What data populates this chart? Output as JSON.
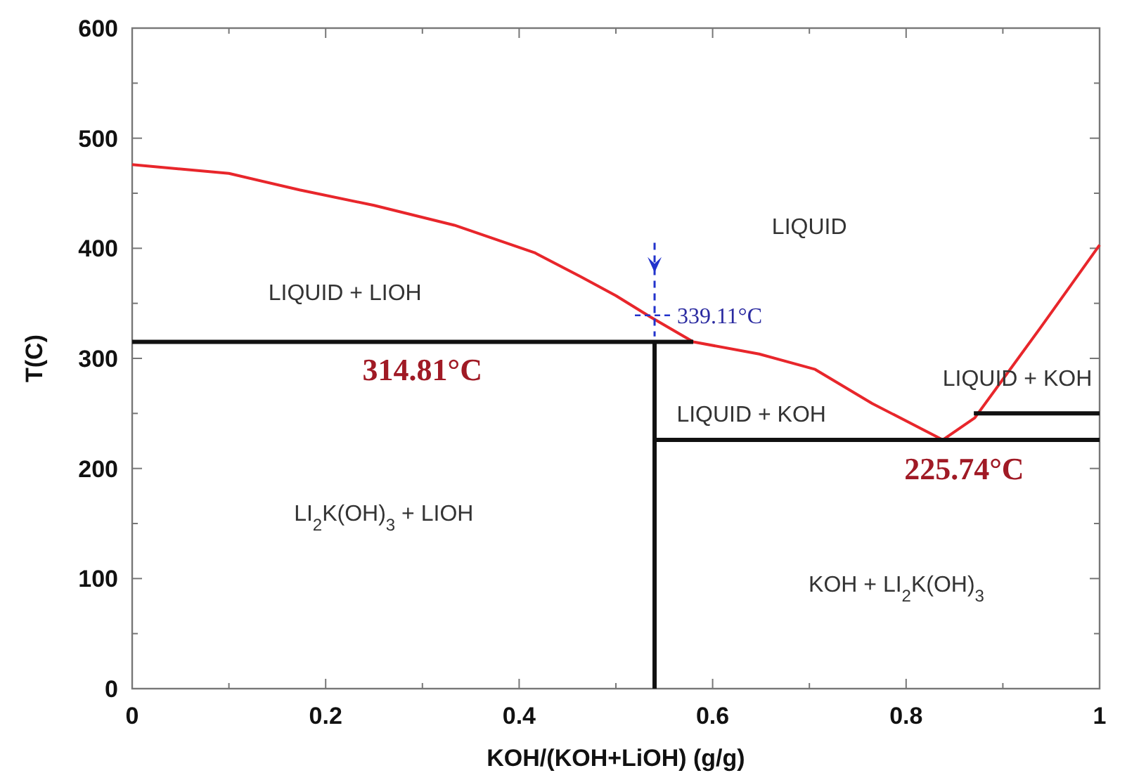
{
  "chart_data": {
    "type": "line",
    "xlabel": "KOH/(KOH+LiOH) (g/g)",
    "ylabel": "T(C)",
    "xlim": [
      0,
      1
    ],
    "ylim": [
      0,
      600
    ],
    "xticks": [
      0,
      {
        "value": 0.1,
        "label": null
      },
      0.2,
      {
        "value": 0.3,
        "label": null
      },
      0.4,
      {
        "value": 0.5,
        "label": null
      },
      0.6,
      {
        "value": 0.7,
        "label": null
      },
      0.8,
      {
        "value": 0.9,
        "label": null
      },
      1
    ],
    "yticks": [
      0,
      {
        "value": 50,
        "label": null
      },
      100,
      {
        "value": 150,
        "label": null
      },
      200,
      {
        "value": 250,
        "label": null
      },
      300,
      {
        "value": 350,
        "label": null
      },
      400,
      {
        "value": 450,
        "label": null
      },
      500,
      {
        "value": 550,
        "label": null
      },
      600
    ],
    "grid": false,
    "marker": "none",
    "line_style": "solid",
    "series": [
      {
        "color": "#e8262b",
        "x": [
          0,
          0.1,
          0.173,
          0.25,
          0.333,
          0.416,
          0.464,
          0.5,
          0.535,
          0.58,
          0.648,
          0.706,
          0.765,
          0.838,
          0.871,
          0.939,
          1
        ],
        "values": [
          476,
          468,
          453,
          439,
          421,
          396,
          374,
          357,
          338,
          315,
          304,
          290,
          259,
          226,
          246,
          328,
          403
        ]
      },
      {
        "color": "#111111",
        "x": [
          0,
          0.58
        ],
        "values": [
          315,
          315
        ]
      },
      {
        "color": "#111111",
        "x": [
          0.54,
          0.54
        ],
        "values": [
          0,
          315
        ]
      },
      {
        "color": "#111111",
        "x": [
          0.54,
          1
        ],
        "values": [
          226,
          226
        ]
      },
      {
        "color": "#111111",
        "x": [
          0.87,
          1
        ],
        "values": [
          250,
          250
        ]
      }
    ],
    "annotations": [
      "314.81°C",
      "225.74°C",
      {
        "text": "339.11°C",
        "x": 0.54,
        "y": 339.11
      },
      "LIQUID",
      "LIQUID + LIOH",
      "LIQUID + KOH",
      "LIQUID + KOH",
      "LI$_{2}$K(OH)$_{3}$ + LIOH",
      "KOH + LI$_{2}$K(OH)$_{3}$"
    ]
  }
}
